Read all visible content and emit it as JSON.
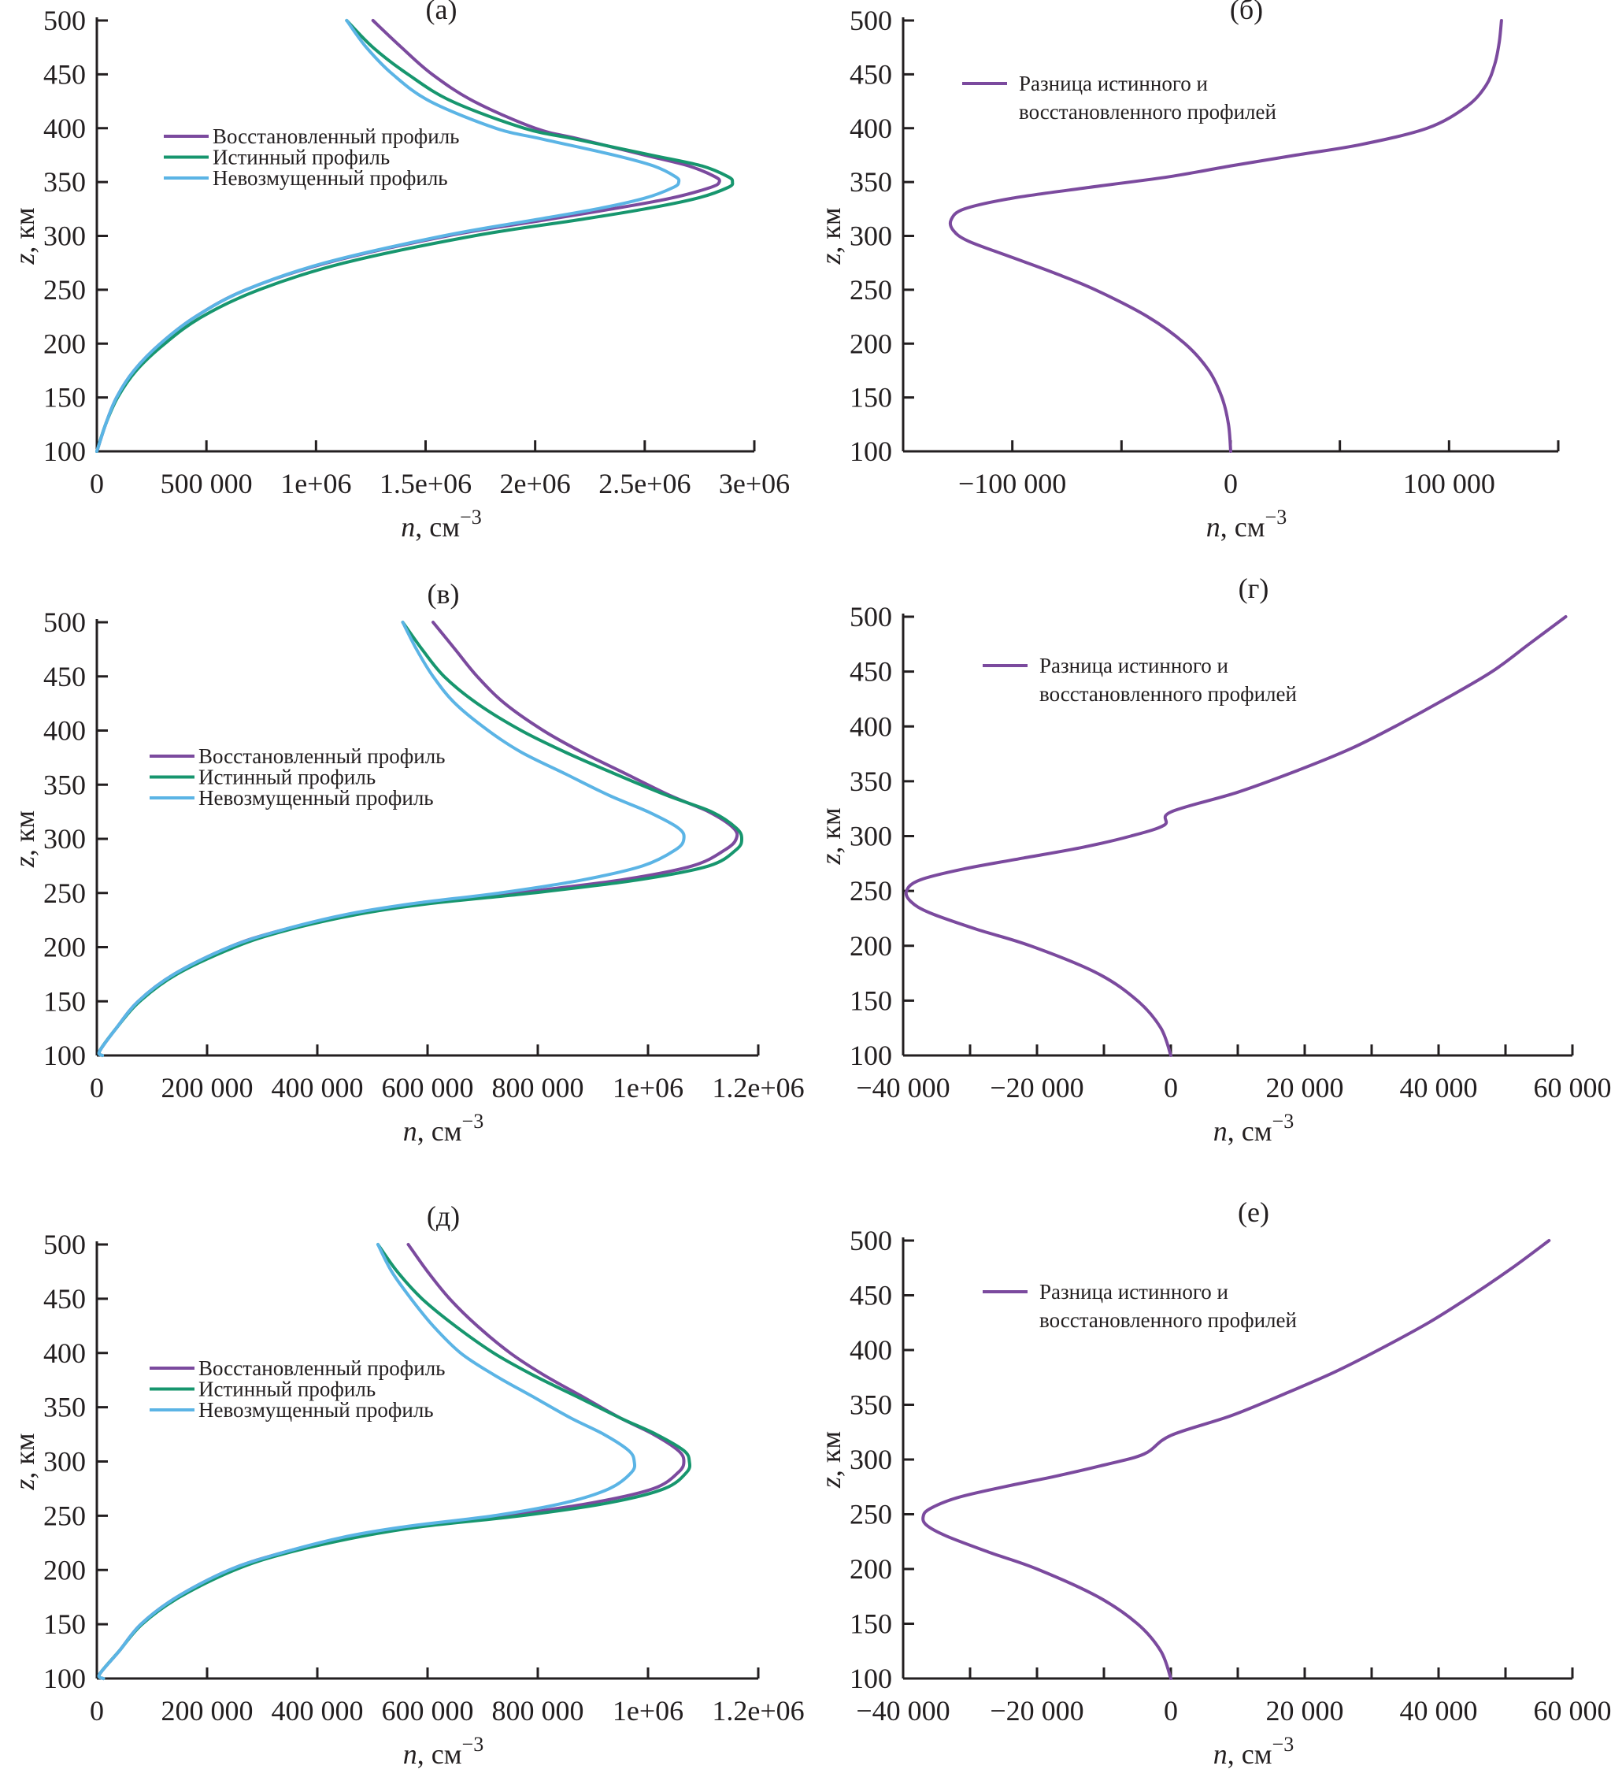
{
  "colors": {
    "reconstructed": "#7b4a9e",
    "true": "#17966e",
    "unperturbed": "#5bb4e5",
    "difference": "#7b4a9e",
    "axis": "#231f20"
  },
  "chart_data": [
    {
      "id": "a",
      "type": "line",
      "title": "(a)",
      "xlabel": "n, см",
      "xlabel_exp": "−3",
      "ylabel": "z, км",
      "xlim": [
        0,
        3000000
      ],
      "ylim": [
        100,
        500
      ],
      "xticks": [
        0,
        500000,
        1000000,
        1500000,
        2000000,
        2500000,
        3000000
      ],
      "xtick_labels": [
        "0",
        "500 000",
        "1e+06",
        "1.5e+06",
        "2e+06",
        "2.5e+06",
        "3e+06"
      ],
      "yticks": [
        100,
        150,
        200,
        250,
        300,
        350,
        400,
        450,
        500
      ],
      "ytick_labels": [
        "100",
        "150",
        "200",
        "250",
        "300",
        "350",
        "400",
        "450",
        "500"
      ],
      "legend_position": "center-left",
      "series": [
        {
          "name": "Восстановленный профиль",
          "color_key": "reconstructed",
          "z": [
            100,
            125,
            150,
            175,
            200,
            225,
            250,
            275,
            300,
            315,
            325,
            335,
            345,
            350,
            355,
            365,
            375,
            390,
            400,
            425,
            450,
            475,
            500
          ],
          "n": [
            0,
            40000,
            90000,
            170000,
            290000,
            450000,
            680000,
            1050000,
            1600000,
            2050000,
            2350000,
            2620000,
            2800000,
            2840000,
            2820000,
            2700000,
            2500000,
            2200000,
            2000000,
            1720000,
            1530000,
            1390000,
            1260000
          ]
        },
        {
          "name": "Истинный профиль",
          "color_key": "true",
          "z": [
            100,
            125,
            150,
            175,
            200,
            225,
            250,
            275,
            300,
            315,
            325,
            335,
            345,
            350,
            355,
            365,
            375,
            390,
            400,
            425,
            450,
            475,
            500
          ],
          "n": [
            0,
            40000,
            95000,
            180000,
            310000,
            480000,
            740000,
            1130000,
            1720000,
            2200000,
            2500000,
            2740000,
            2880000,
            2900000,
            2880000,
            2760000,
            2530000,
            2180000,
            1950000,
            1620000,
            1420000,
            1260000,
            1140000
          ]
        },
        {
          "name": "Невозмущенный профиль",
          "color_key": "unperturbed",
          "z": [
            100,
            125,
            150,
            175,
            200,
            225,
            250,
            275,
            300,
            315,
            325,
            335,
            345,
            350,
            355,
            365,
            375,
            390,
            400,
            425,
            450,
            475,
            500
          ],
          "n": [
            0,
            40000,
            90000,
            170000,
            290000,
            450000,
            680000,
            1040000,
            1580000,
            2000000,
            2280000,
            2500000,
            2630000,
            2655000,
            2640000,
            2540000,
            2360000,
            2030000,
            1820000,
            1520000,
            1350000,
            1230000,
            1140000
          ]
        }
      ]
    },
    {
      "id": "b",
      "type": "line",
      "title": "(б)",
      "xlabel": "n, см",
      "xlabel_exp": "−3",
      "ylabel": "z, км",
      "xlim": [
        -150000,
        150000
      ],
      "ylim": [
        100,
        500
      ],
      "xticks": [
        -150000,
        -100000,
        -50000,
        0,
        50000,
        100000,
        150000
      ],
      "xtick_labels": [
        "",
        "−100 000",
        "",
        "0",
        "",
        "100 000",
        ""
      ],
      "yticks": [
        100,
        150,
        200,
        250,
        300,
        350,
        400,
        450,
        500
      ],
      "ytick_labels": [
        "100",
        "150",
        "200",
        "250",
        "300",
        "350",
        "400",
        "450",
        "500"
      ],
      "legend_position": "top-left",
      "series": [
        {
          "name": "Разница истинного и восстановленного профилей",
          "color_key": "difference",
          "z": [
            100,
            125,
            150,
            175,
            200,
            225,
            250,
            265,
            280,
            295,
            305,
            315,
            325,
            335,
            345,
            355,
            365,
            375,
            385,
            400,
            420,
            440,
            460,
            480,
            500
          ],
          "n": [
            0,
            -1000,
            -4000,
            -10000,
            -21000,
            -38000,
            -62000,
            -80000,
            -100000,
            -120000,
            -127000,
            -128000,
            -122000,
            -100000,
            -65000,
            -28000,
            0,
            30000,
            60000,
            90000,
            108000,
            117000,
            121000,
            123000,
            124000
          ]
        }
      ]
    },
    {
      "id": "v",
      "type": "line",
      "title": "(в)",
      "xlabel": "n, см",
      "xlabel_exp": "−3",
      "ylabel": "z, км",
      "xlim": [
        0,
        1200000
      ],
      "ylim": [
        100,
        500
      ],
      "xticks": [
        0,
        200000,
        400000,
        600000,
        800000,
        1000000,
        1200000
      ],
      "xtick_labels": [
        "0",
        "200 000",
        "400 000",
        "600 000",
        "800 000",
        "1e+06",
        "1.2e+06"
      ],
      "yticks": [
        100,
        150,
        200,
        250,
        300,
        350,
        400,
        450,
        500
      ],
      "ytick_labels": [
        "100",
        "150",
        "200",
        "250",
        "300",
        "350",
        "400",
        "450",
        "500"
      ],
      "legend_position": "center-left",
      "series": [
        {
          "name": "Восстановленный профиль",
          "color_key": "reconstructed",
          "z": [
            100,
            104,
            125,
            150,
            175,
            200,
            215,
            230,
            240,
            250,
            262,
            275,
            290,
            300,
            310,
            325,
            340,
            360,
            380,
            400,
            425,
            450,
            475,
            500
          ],
          "n": [
            10000,
            5000,
            35000,
            75000,
            140000,
            240000,
            330000,
            460000,
            580000,
            760000,
            950000,
            1080000,
            1140000,
            1160000,
            1155000,
            1110000,
            1040000,
            960000,
            880000,
            810000,
            740000,
            690000,
            650000,
            610000
          ]
        },
        {
          "name": "Истинный профиль",
          "color_key": "true",
          "z": [
            100,
            104,
            125,
            150,
            175,
            200,
            215,
            230,
            240,
            250,
            262,
            275,
            290,
            300,
            310,
            325,
            340,
            360,
            380,
            400,
            425,
            450,
            475,
            500
          ],
          "n": [
            10000,
            5000,
            35000,
            78000,
            145000,
            250000,
            340000,
            470000,
            600000,
            790000,
            980000,
            1110000,
            1160000,
            1170000,
            1160000,
            1115000,
            1035000,
            940000,
            850000,
            770000,
            690000,
            630000,
            590000,
            555000
          ]
        },
        {
          "name": "Невозмущенный профиль",
          "color_key": "unperturbed",
          "z": [
            100,
            104,
            125,
            150,
            175,
            200,
            215,
            230,
            240,
            250,
            262,
            275,
            290,
            300,
            310,
            325,
            340,
            360,
            380,
            400,
            425,
            450,
            475,
            500
          ],
          "n": [
            10000,
            5000,
            35000,
            75000,
            140000,
            240000,
            330000,
            450000,
            570000,
            730000,
            880000,
            990000,
            1050000,
            1065000,
            1055000,
            1000000,
            930000,
            850000,
            770000,
            710000,
            650000,
            610000,
            580000,
            555000
          ]
        }
      ]
    },
    {
      "id": "g",
      "type": "line",
      "title": "(г)",
      "xlabel": "n, см",
      "xlabel_exp": "−3",
      "ylabel": "z, км",
      "xlim": [
        -40000,
        60000
      ],
      "ylim": [
        100,
        500
      ],
      "xticks": [
        -40000,
        -30000,
        -20000,
        -10000,
        0,
        10000,
        20000,
        30000,
        40000,
        50000,
        60000
      ],
      "xtick_labels": [
        "−40 000",
        "",
        "−20 000",
        "",
        "0",
        "",
        "20 000",
        "",
        "40 000",
        "",
        "60 000"
      ],
      "yticks": [
        100,
        150,
        200,
        250,
        300,
        350,
        400,
        450,
        500
      ],
      "ytick_labels": [
        "100",
        "150",
        "200",
        "250",
        "300",
        "350",
        "400",
        "450",
        "500"
      ],
      "legend_position": "top-left",
      "series": [
        {
          "name": "Разница истинного и восстановленного профилей",
          "color_key": "difference",
          "z": [
            100,
            125,
            150,
            175,
            200,
            215,
            230,
            240,
            250,
            260,
            270,
            280,
            290,
            300,
            310,
            322,
            340,
            360,
            380,
            400,
            425,
            450,
            475,
            500
          ],
          "n": [
            0,
            -1500,
            -5000,
            -11000,
            -21000,
            -29000,
            -36000,
            -38800,
            -39500,
            -37500,
            -31000,
            -22000,
            -13000,
            -6000,
            -1000,
            0,
            10000,
            19000,
            27000,
            33500,
            41000,
            48000,
            53500,
            59000
          ]
        }
      ]
    },
    {
      "id": "d",
      "type": "line",
      "title": "(д)",
      "xlabel": "n, см",
      "xlabel_exp": "−3",
      "ylabel": "z, км",
      "xlim": [
        0,
        1200000
      ],
      "ylim": [
        100,
        500
      ],
      "xticks": [
        0,
        200000,
        400000,
        600000,
        800000,
        1000000,
        1200000
      ],
      "xtick_labels": [
        "0",
        "200 000",
        "400 000",
        "600 000",
        "800 000",
        "1e+06",
        "1.2e+06"
      ],
      "yticks": [
        100,
        150,
        200,
        250,
        300,
        350,
        400,
        450,
        500
      ],
      "ytick_labels": [
        "100",
        "150",
        "200",
        "250",
        "300",
        "350",
        "400",
        "450",
        "500"
      ],
      "legend_position": "center-left",
      "series": [
        {
          "name": "Восстановленный профиль",
          "color_key": "reconstructed",
          "z": [
            100,
            104,
            125,
            150,
            175,
            200,
            215,
            230,
            240,
            250,
            262,
            275,
            290,
            300,
            310,
            325,
            340,
            360,
            380,
            400,
            425,
            450,
            475,
            500
          ],
          "n": [
            12000,
            5000,
            40000,
            80000,
            145000,
            240000,
            330000,
            450000,
            570000,
            740000,
            900000,
            1010000,
            1055000,
            1065000,
            1055000,
            1010000,
            950000,
            880000,
            810000,
            750000,
            690000,
            640000,
            600000,
            565000
          ]
        },
        {
          "name": "Истинный профиль",
          "color_key": "true",
          "z": [
            100,
            104,
            125,
            150,
            175,
            200,
            215,
            230,
            240,
            250,
            262,
            275,
            290,
            300,
            310,
            325,
            340,
            360,
            380,
            400,
            425,
            450,
            475,
            500
          ],
          "n": [
            12000,
            5000,
            40000,
            82000,
            150000,
            250000,
            340000,
            470000,
            590000,
            770000,
            930000,
            1030000,
            1070000,
            1075000,
            1065000,
            1015000,
            950000,
            870000,
            790000,
            720000,
            650000,
            590000,
            545000,
            510000
          ]
        },
        {
          "name": "Невозмущенный профиль",
          "color_key": "unperturbed",
          "z": [
            100,
            104,
            125,
            150,
            175,
            200,
            215,
            230,
            240,
            250,
            262,
            275,
            290,
            300,
            310,
            325,
            340,
            360,
            380,
            400,
            425,
            450,
            475,
            500
          ],
          "n": [
            12000,
            5000,
            40000,
            80000,
            145000,
            240000,
            330000,
            445000,
            560000,
            720000,
            850000,
            930000,
            970000,
            975000,
            965000,
            920000,
            860000,
            790000,
            720000,
            660000,
            610000,
            570000,
            535000,
            510000
          ]
        }
      ]
    },
    {
      "id": "e",
      "type": "line",
      "title": "(е)",
      "xlabel": "n, см",
      "xlabel_exp": "−3",
      "ylabel": "z, км",
      "xlim": [
        -40000,
        60000
      ],
      "ylim": [
        100,
        500
      ],
      "xticks": [
        -40000,
        -30000,
        -20000,
        -10000,
        0,
        10000,
        20000,
        30000,
        40000,
        50000,
        60000
      ],
      "xtick_labels": [
        "−40 000",
        "",
        "−20 000",
        "",
        "0",
        "",
        "20 000",
        "",
        "40 000",
        "",
        "60 000"
      ],
      "yticks": [
        100,
        150,
        200,
        250,
        300,
        350,
        400,
        450,
        500
      ],
      "ytick_labels": [
        "100",
        "150",
        "200",
        "250",
        "300",
        "350",
        "400",
        "450",
        "500"
      ],
      "legend_position": "top-left",
      "series": [
        {
          "name": "Разница истинного и восстановленного профилей",
          "color_key": "difference",
          "z": [
            100,
            125,
            150,
            175,
            200,
            215,
            230,
            240,
            248,
            255,
            265,
            275,
            285,
            295,
            305,
            322,
            340,
            360,
            380,
            400,
            425,
            450,
            475,
            500
          ],
          "n": [
            0,
            -1500,
            -5000,
            -11000,
            -20000,
            -27000,
            -33500,
            -36500,
            -37000,
            -36000,
            -32000,
            -25000,
            -17000,
            -10000,
            -4000,
            0,
            9000,
            17000,
            24500,
            31000,
            38500,
            45000,
            51000,
            56500
          ]
        }
      ]
    }
  ],
  "legend": {
    "three_series": [
      "Восстановленный профиль",
      "Истинный профиль",
      "Невозмущенный профиль"
    ],
    "difference_line1": "Разница истинного и",
    "difference_line2": "восстановленного профилей"
  }
}
